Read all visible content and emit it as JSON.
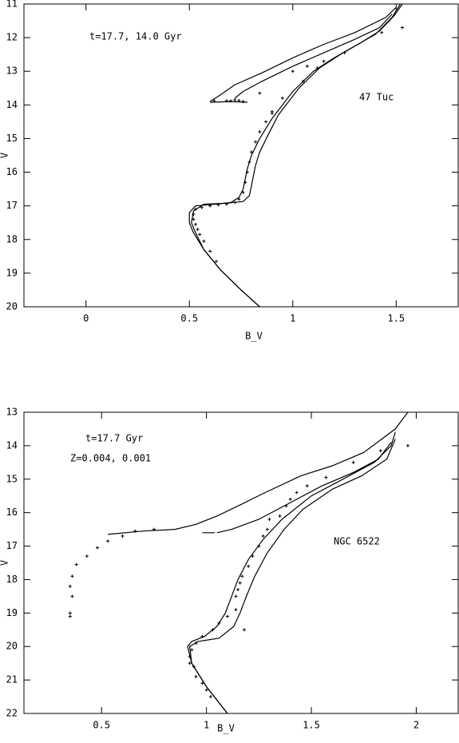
{
  "chart_data": [
    {
      "type": "scatter",
      "xlabel": "B_V",
      "ylabel": "V",
      "annotations": [
        "t=17.7, 14.0 Gyr",
        "47 Tuc"
      ],
      "xlim": [
        -0.3,
        1.8
      ],
      "xticks": [
        0,
        0.5,
        1,
        1.5
      ],
      "ylim": [
        20,
        11
      ],
      "yticks": [
        11,
        12,
        13,
        14,
        15,
        16,
        17,
        18,
        19,
        20
      ],
      "series": [
        {
          "mode": "line",
          "color": "#000000",
          "x": [
            0.84,
            0.75,
            0.65,
            0.57,
            0.52,
            0.5,
            0.5,
            0.53,
            0.62,
            0.7,
            0.74,
            0.76,
            0.77,
            0.78,
            0.8,
            0.84,
            0.9,
            1.0,
            1.1,
            1.2,
            1.3,
            1.4,
            1.48,
            1.52
          ],
          "values": [
            20,
            19.5,
            18.9,
            18.3,
            17.8,
            17.5,
            17.2,
            17.0,
            16.95,
            16.9,
            16.75,
            16.5,
            16.2,
            15.9,
            15.5,
            15.0,
            14.4,
            13.6,
            13.0,
            12.6,
            12.25,
            11.9,
            11.4,
            11.0
          ]
        },
        {
          "mode": "line",
          "color": "#000000",
          "x": [
            0.84,
            0.75,
            0.65,
            0.57,
            0.53,
            0.51,
            0.52,
            0.57,
            0.68,
            0.76,
            0.79,
            0.8,
            0.81,
            0.82,
            0.84,
            0.88,
            0.93,
            1.03,
            1.13,
            1.23,
            1.33,
            1.42,
            1.49,
            1.53
          ],
          "values": [
            20,
            19.5,
            18.9,
            18.3,
            17.8,
            17.5,
            17.15,
            16.95,
            16.92,
            16.87,
            16.7,
            16.4,
            16.1,
            15.8,
            15.4,
            14.9,
            14.3,
            13.5,
            12.9,
            12.5,
            12.15,
            11.8,
            11.35,
            11.0
          ]
        },
        {
          "mode": "line",
          "color": "#000000",
          "x": [
            0.6,
            0.65,
            0.72,
            0.85,
            1.0,
            1.15,
            1.3,
            1.45,
            1.5
          ],
          "values": [
            13.9,
            13.7,
            13.4,
            13.05,
            12.6,
            12.2,
            11.85,
            11.4,
            11.1
          ]
        },
        {
          "mode": "line",
          "color": "#000000",
          "x": [
            0.72,
            0.76,
            0.85,
            1.0,
            1.15,
            1.3,
            1.42,
            1.48
          ],
          "values": [
            13.8,
            13.6,
            13.3,
            12.85,
            12.45,
            12.05,
            11.7,
            11.3
          ]
        },
        {
          "mode": "line",
          "color": "#000000",
          "x": [
            0.6,
            0.7,
            0.78
          ],
          "values": [
            13.92,
            13.9,
            13.92
          ]
        },
        {
          "mode": "points",
          "color": "#000000",
          "x": [
            0.53,
            0.52,
            0.52,
            0.53,
            0.54,
            0.55,
            0.57,
            0.6,
            0.63,
            0.56,
            0.6,
            0.64,
            0.68,
            0.72,
            0.74,
            0.76,
            0.77,
            0.78,
            0.79,
            0.8,
            0.82,
            0.84,
            0.87,
            0.9,
            0.9,
            0.95,
            1.0,
            1.05,
            1.07,
            1.12,
            1.15,
            1.25,
            1.43,
            1.53,
            0.62,
            0.68,
            0.7,
            0.72,
            0.74,
            0.76,
            0.84
          ],
          "values": [
            17.1,
            17.25,
            17.4,
            17.55,
            17.7,
            17.85,
            18.05,
            18.35,
            18.65,
            17.05,
            17.0,
            16.97,
            16.95,
            16.9,
            16.8,
            16.6,
            16.3,
            16.0,
            15.7,
            15.4,
            15.1,
            14.8,
            14.5,
            14.25,
            14.2,
            13.8,
            13.0,
            13.3,
            12.85,
            12.9,
            12.7,
            12.45,
            11.85,
            11.7,
            13.88,
            13.88,
            13.88,
            13.85,
            13.87,
            13.9,
            13.65
          ]
        }
      ]
    },
    {
      "type": "scatter",
      "xlabel": "B_V",
      "ylabel": "V",
      "annotations": [
        "t=17.7 Gyr",
        "Z=0.004, 0.001",
        "NGC 6522"
      ],
      "xlim": [
        0.13,
        2.2
      ],
      "xticks": [
        0.5,
        1,
        1.5,
        2
      ],
      "ylim": [
        22,
        13
      ],
      "yticks": [
        13,
        14,
        15,
        16,
        17,
        18,
        19,
        20,
        21,
        22
      ],
      "series": [
        {
          "mode": "line",
          "color": "#000000",
          "x": [
            1.1,
            1.0,
            0.93,
            0.91,
            0.93,
            0.99,
            1.05,
            1.09,
            1.12,
            1.15,
            1.2,
            1.27,
            1.36,
            1.5,
            1.65,
            1.8,
            1.88,
            1.9
          ],
          "values": [
            22,
            21.2,
            20.5,
            20.0,
            19.85,
            19.7,
            19.4,
            19.0,
            18.5,
            18.0,
            17.4,
            16.8,
            16.2,
            15.5,
            15.0,
            14.5,
            14.0,
            13.6
          ]
        },
        {
          "mode": "line",
          "color": "#000000",
          "x": [
            1.1,
            1.0,
            0.93,
            0.92,
            0.96,
            1.06,
            1.13,
            1.16,
            1.19,
            1.23,
            1.29,
            1.37,
            1.46,
            1.6,
            1.74,
            1.86,
            1.9
          ],
          "values": [
            22,
            21.2,
            20.5,
            20.0,
            19.85,
            19.75,
            19.4,
            19.0,
            18.5,
            17.9,
            17.2,
            16.5,
            15.9,
            15.3,
            14.9,
            14.4,
            13.8
          ]
        },
        {
          "mode": "line",
          "color": "#000000",
          "x": [
            0.53,
            0.7,
            0.85,
            0.95,
            1.05,
            1.15,
            1.28,
            1.45,
            1.6,
            1.75,
            1.9,
            1.96
          ],
          "values": [
            16.65,
            16.55,
            16.5,
            16.35,
            16.1,
            15.8,
            15.4,
            14.9,
            14.6,
            14.2,
            13.5,
            13.0
          ]
        },
        {
          "mode": "line",
          "color": "#000000",
          "x": [
            1.05,
            1.12,
            1.25,
            1.4,
            1.55,
            1.7,
            1.82,
            1.88
          ],
          "values": [
            16.6,
            16.5,
            16.2,
            15.7,
            15.2,
            14.8,
            14.4,
            13.9
          ]
        },
        {
          "mode": "line",
          "color": "#000000",
          "x": [
            0.98,
            1.04
          ],
          "values": [
            16.6,
            16.6
          ]
        },
        {
          "mode": "points",
          "color": "#000000",
          "x": [
            0.35,
            0.35,
            0.36,
            0.35,
            0.36,
            0.38,
            0.43,
            0.48,
            0.53,
            0.6,
            0.66,
            0.75,
            0.92,
            0.92,
            0.93,
            0.95,
            0.98,
            1.03,
            1.06,
            1.1,
            1.14,
            1.18,
            1.14,
            1.15,
            1.16,
            1.17,
            1.2,
            1.22,
            1.25,
            1.27,
            1.29,
            1.3,
            1.35,
            1.38,
            1.4,
            1.43,
            1.48,
            1.57,
            1.7,
            1.83,
            1.96,
            0.94,
            0.95,
            0.98,
            1.0,
            1.02
          ],
          "values": [
            19.1,
            19.0,
            18.5,
            18.2,
            17.9,
            17.55,
            17.3,
            17.05,
            16.85,
            16.7,
            16.55,
            16.5,
            20.5,
            20.3,
            20.1,
            19.9,
            19.7,
            19.5,
            19.3,
            19.1,
            18.9,
            19.5,
            18.5,
            18.3,
            18.1,
            17.9,
            17.6,
            17.3,
            17.0,
            16.7,
            16.5,
            16.2,
            16.1,
            15.8,
            15.6,
            15.4,
            15.2,
            14.95,
            14.5,
            14.15,
            14.0,
            20.6,
            20.9,
            21.1,
            21.3,
            21.5
          ]
        }
      ]
    }
  ]
}
